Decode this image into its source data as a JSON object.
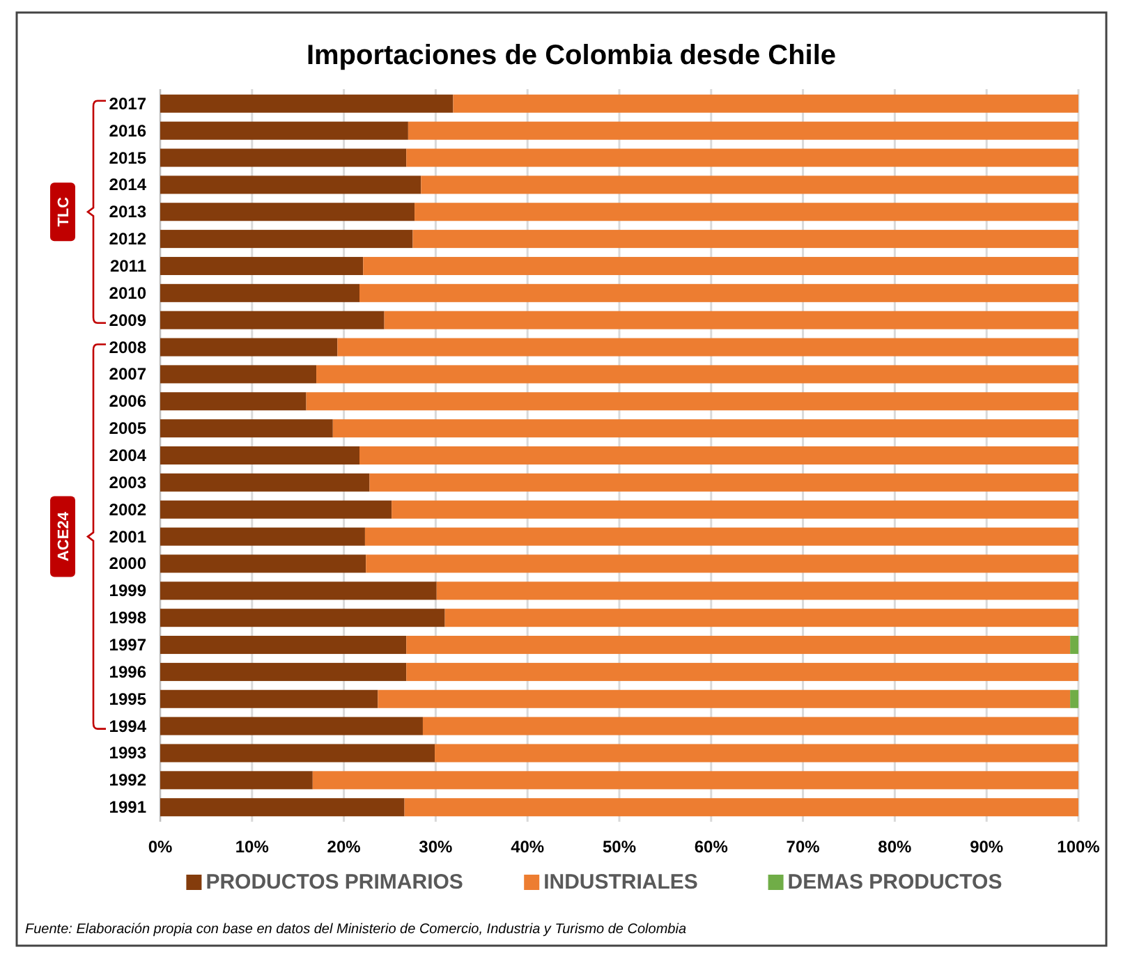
{
  "chart_data": {
    "type": "bar",
    "orientation": "horizontal",
    "stacked": true,
    "title": "Importaciones de Colombia desde Chile",
    "categories": [
      "2017",
      "2016",
      "2015",
      "2014",
      "2013",
      "2012",
      "2011",
      "2010",
      "2009",
      "2008",
      "2007",
      "2006",
      "2005",
      "2004",
      "2003",
      "2002",
      "2001",
      "2000",
      "1999",
      "1998",
      "1997",
      "1996",
      "1995",
      "1994",
      "1993",
      "1992",
      "1991"
    ],
    "series": [
      {
        "name": "PRODUCTOS PRIMARIOS",
        "color": "#843c0c",
        "values": [
          31.9,
          27.0,
          26.8,
          28.4,
          27.7,
          27.5,
          22.1,
          21.7,
          24.4,
          19.3,
          17.0,
          15.9,
          18.8,
          21.7,
          22.8,
          25.2,
          22.3,
          22.4,
          30.1,
          31.0,
          26.8,
          26.8,
          23.7,
          28.6,
          29.9,
          16.6,
          26.6
        ]
      },
      {
        "name": "INDUSTRIALES",
        "color": "#ed7d31",
        "values": [
          68.1,
          73.0,
          73.2,
          71.6,
          72.3,
          72.5,
          77.9,
          78.3,
          75.6,
          80.7,
          83.0,
          84.1,
          81.2,
          78.3,
          77.2,
          74.8,
          77.7,
          77.6,
          69.9,
          69.0,
          72.3,
          73.2,
          75.4,
          71.4,
          70.1,
          83.4,
          73.4
        ]
      },
      {
        "name": "DEMAS PRODUCTOS",
        "color": "#70ad47",
        "values": [
          0,
          0,
          0,
          0,
          0,
          0,
          0,
          0,
          0,
          0,
          0,
          0,
          0,
          0,
          0,
          0,
          0,
          0,
          0,
          0,
          0.9,
          0,
          0.9,
          0,
          0,
          0,
          0
        ]
      }
    ],
    "xlim": [
      0,
      100
    ],
    "xticks": [
      {
        "value": 0,
        "label": "0%"
      },
      {
        "value": 10,
        "label": "10%"
      },
      {
        "value": 20,
        "label": "20%"
      },
      {
        "value": 30,
        "label": "30%"
      },
      {
        "value": 40,
        "label": "40%"
      },
      {
        "value": 50,
        "label": "50%"
      },
      {
        "value": 60,
        "label": "60%"
      },
      {
        "value": 70,
        "label": "70%"
      },
      {
        "value": 80,
        "label": "80%"
      },
      {
        "value": 90,
        "label": "90%"
      },
      {
        "value": 100,
        "label": "100%"
      }
    ],
    "grid": "x",
    "legend": "bottom",
    "annotations": [
      "TLC",
      "ACE24",
      "Fuente: Elaboración propia con base en datos del Ministerio de Comercio, Industria y Turismo de Colombia"
    ]
  }
}
